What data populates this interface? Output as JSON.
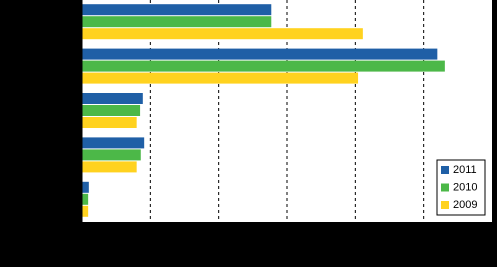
{
  "chart_data": {
    "type": "barh",
    "categories": [
      null,
      null,
      null,
      null,
      null
    ],
    "series": [
      {
        "name": "2011",
        "color": "#1f5fa6",
        "values": [
          2.77,
          5.2,
          0.89,
          0.91,
          0.1
        ]
      },
      {
        "name": "2010",
        "color": "#4cb848",
        "values": [
          2.77,
          5.31,
          0.85,
          0.86,
          0.09
        ]
      },
      {
        "name": "2009",
        "color": "#ffd21f",
        "values": [
          4.11,
          4.04,
          0.8,
          0.8,
          0.09
        ]
      }
    ],
    "xlim": [
      0,
      6
    ],
    "xticks": [
      0,
      1,
      2,
      3,
      4,
      5,
      6
    ],
    "grid": true,
    "legend": "lower-right"
  }
}
